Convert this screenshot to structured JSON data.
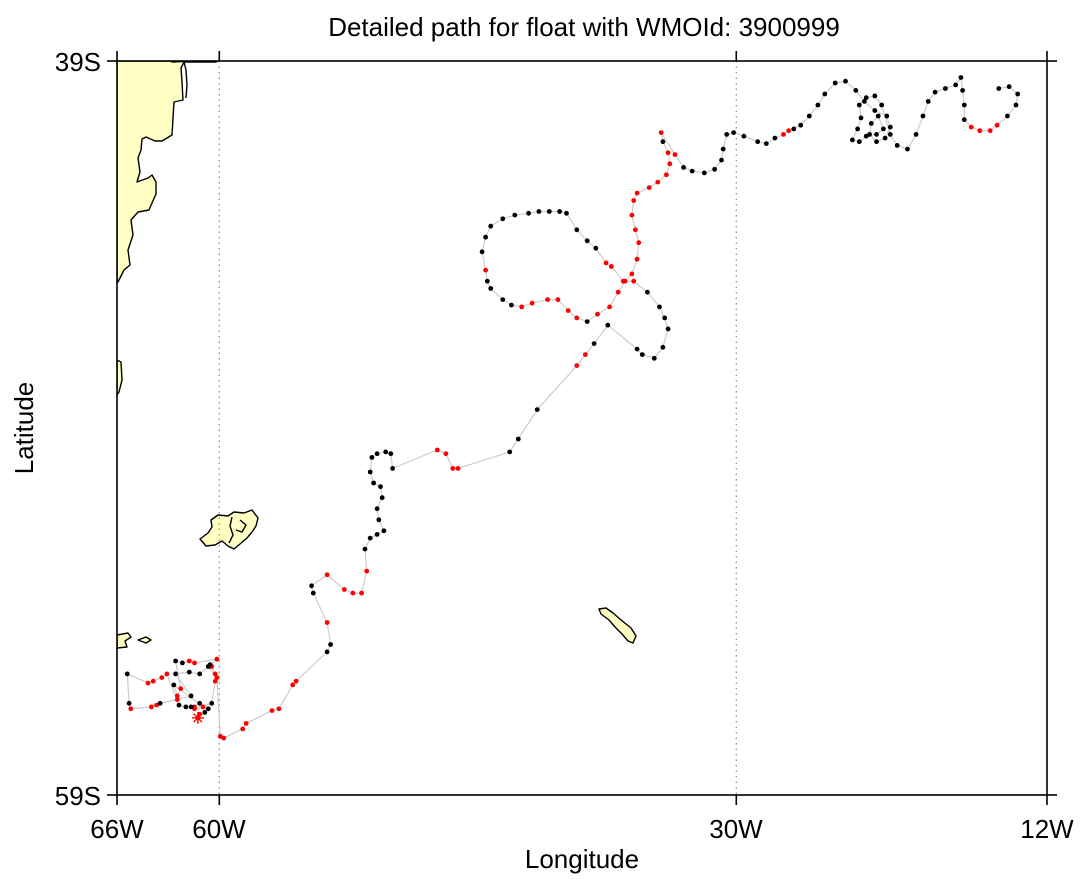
{
  "title": "Detailed path for float with WMOId: 3900999",
  "x_axis": {
    "label": "Longitude",
    "ticks": [
      "66W",
      "60W",
      "30W",
      "12W"
    ],
    "tick_values": [
      -66,
      -60,
      -30,
      -12
    ],
    "range": [
      -66,
      -12
    ]
  },
  "y_axis": {
    "label": "Latitude",
    "ticks": [
      "39S",
      "59S"
    ],
    "tick_values": [
      -39,
      -59
    ],
    "range": [
      -59,
      -39
    ]
  },
  "colors": {
    "land": "#ffffc4",
    "coast": "#000000",
    "track_line": "#cccccc",
    "point_black": "#000000",
    "point_red": "#ff0000",
    "gridline": "#888888"
  },
  "start_marker": {
    "lon": -61.3,
    "lat": -56.9,
    "symbol": "asterisk",
    "color": "#ff0000"
  },
  "track": [
    [
      -61.3,
      -56.9,
      "r"
    ],
    [
      -61.2,
      -56.8,
      "r"
    ],
    [
      -60.9,
      -56.75,
      "k"
    ],
    [
      -60.7,
      -56.65,
      "k"
    ],
    [
      -61.5,
      -56.65,
      "r"
    ],
    [
      -60.5,
      -56.5,
      "k"
    ],
    [
      -60.3,
      -55.9,
      "r"
    ],
    [
      -60.3,
      -55.7,
      "r"
    ],
    [
      -60.5,
      -55.5,
      "r"
    ],
    [
      -60.6,
      -55.45,
      "k"
    ],
    [
      -60.2,
      -55.3,
      "r"
    ],
    [
      -61.5,
      -55.4,
      "r"
    ],
    [
      -61.8,
      -55.35,
      "r"
    ],
    [
      -62.2,
      -55.4,
      "k"
    ],
    [
      -62.6,
      -55.35,
      "k"
    ],
    [
      -62.3,
      -56.1,
      "r"
    ],
    [
      -62.5,
      -56.3,
      "r"
    ],
    [
      -62.7,
      -56.0,
      "k"
    ],
    [
      -61.0,
      -56.6,
      "r"
    ],
    [
      -61.2,
      -56.5,
      "k"
    ],
    [
      -61.5,
      -56.6,
      "r"
    ],
    [
      -61.7,
      -56.6,
      "k"
    ],
    [
      -62.0,
      -56.6,
      "k"
    ],
    [
      -62.4,
      -56.55,
      "k"
    ],
    [
      -63.1,
      -55.7,
      "r"
    ],
    [
      -63.4,
      -55.8,
      "r"
    ],
    [
      -63.9,
      -55.9,
      "r"
    ],
    [
      -64.2,
      -55.95,
      "r"
    ],
    [
      -65.4,
      -55.7,
      "k"
    ],
    [
      -65.3,
      -56.5,
      "k"
    ],
    [
      -65.2,
      -56.65,
      "r"
    ],
    [
      -64.0,
      -56.6,
      "r"
    ],
    [
      -63.7,
      -56.55,
      "r"
    ],
    [
      -63.5,
      -56.5,
      "k"
    ],
    [
      -62.5,
      -56.4,
      "r"
    ],
    [
      -61.7,
      -56.3,
      "k"
    ],
    [
      -62.6,
      -55.7,
      "k"
    ],
    [
      -61.8,
      -55.65,
      "k"
    ],
    [
      -61.2,
      -55.7,
      "k"
    ],
    [
      -60.7,
      -55.5,
      "k"
    ],
    [
      -60.2,
      -55.8,
      "r"
    ],
    [
      -60.0,
      -57.4,
      "r"
    ],
    [
      -59.8,
      -57.45,
      "r"
    ],
    [
      -58.7,
      -57.2,
      "r"
    ],
    [
      -58.5,
      -57.05,
      "r"
    ],
    [
      -57.0,
      -56.7,
      "r"
    ],
    [
      -56.6,
      -56.65,
      "r"
    ],
    [
      -55.8,
      -56.0,
      "r"
    ],
    [
      -55.6,
      -55.9,
      "r"
    ],
    [
      -53.8,
      -55.1,
      "k"
    ],
    [
      -53.6,
      -54.9,
      "k"
    ],
    [
      -53.8,
      -54.3,
      "r"
    ],
    [
      -54.6,
      -53.5,
      "k"
    ],
    [
      -54.7,
      -53.3,
      "k"
    ],
    [
      -53.8,
      -53.0,
      "r"
    ],
    [
      -52.8,
      -53.4,
      "r"
    ],
    [
      -52.3,
      -53.5,
      "r"
    ],
    [
      -51.8,
      -53.5,
      "r"
    ],
    [
      -51.5,
      -52.9,
      "r"
    ],
    [
      -51.6,
      -52.3,
      "k"
    ],
    [
      -51.3,
      -52.0,
      "k"
    ],
    [
      -50.9,
      -51.9,
      "k"
    ],
    [
      -50.5,
      -51.8,
      "k"
    ],
    [
      -50.8,
      -51.5,
      "k"
    ],
    [
      -50.9,
      -51.2,
      "k"
    ],
    [
      -50.6,
      -50.9,
      "k"
    ],
    [
      -50.7,
      -50.6,
      "k"
    ],
    [
      -51.1,
      -50.5,
      "k"
    ],
    [
      -51.3,
      -50.2,
      "k"
    ],
    [
      -51.2,
      -49.8,
      "k"
    ],
    [
      -50.9,
      -49.7,
      "k"
    ],
    [
      -50.4,
      -49.65,
      "k"
    ],
    [
      -50.1,
      -49.7,
      "k"
    ],
    [
      -50.0,
      -50.1,
      "k"
    ],
    [
      -47.4,
      -49.6,
      "r"
    ],
    [
      -46.9,
      -49.7,
      "r"
    ],
    [
      -46.5,
      -50.1,
      "r"
    ],
    [
      -46.2,
      -50.1,
      "r"
    ],
    [
      -43.2,
      -49.65,
      "k"
    ],
    [
      -42.7,
      -49.3,
      "k"
    ],
    [
      -41.6,
      -48.5,
      "k"
    ],
    [
      -39.3,
      -47.3,
      "r"
    ],
    [
      -38.8,
      -47.0,
      "r"
    ],
    [
      -38.3,
      -46.7,
      "k"
    ],
    [
      -37.5,
      -46.2,
      "k"
    ],
    [
      -35.8,
      -46.85,
      "k"
    ],
    [
      -35.5,
      -47.0,
      "k"
    ],
    [
      -34.8,
      -47.1,
      "k"
    ],
    [
      -34.3,
      -46.8,
      "k"
    ],
    [
      -34.0,
      -46.3,
      "k"
    ],
    [
      -34.2,
      -46.0,
      "k"
    ],
    [
      -34.5,
      -45.7,
      "k"
    ],
    [
      -35.2,
      -45.3,
      "k"
    ],
    [
      -36.0,
      -45.0,
      "r"
    ],
    [
      -36.6,
      -45.0,
      "r"
    ],
    [
      -37.3,
      -44.6,
      "r"
    ],
    [
      -37.6,
      -44.5,
      "r"
    ],
    [
      -38.2,
      -44.1,
      "k"
    ],
    [
      -38.7,
      -43.9,
      "k"
    ],
    [
      -39.3,
      -43.6,
      "k"
    ],
    [
      -39.9,
      -43.15,
      "k"
    ],
    [
      -40.3,
      -43.1,
      "k"
    ],
    [
      -40.9,
      -43.1,
      "k"
    ],
    [
      -41.5,
      -43.1,
      "k"
    ],
    [
      -42.1,
      -43.15,
      "k"
    ],
    [
      -42.9,
      -43.2,
      "k"
    ],
    [
      -43.6,
      -43.3,
      "k"
    ],
    [
      -44.3,
      -43.5,
      "k"
    ],
    [
      -44.6,
      -43.8,
      "k"
    ],
    [
      -44.8,
      -44.2,
      "k"
    ],
    [
      -44.6,
      -44.7,
      "r"
    ],
    [
      -44.5,
      -45.0,
      "k"
    ],
    [
      -44.3,
      -45.2,
      "k"
    ],
    [
      -43.6,
      -45.5,
      "k"
    ],
    [
      -43.1,
      -45.65,
      "k"
    ],
    [
      -42.5,
      -45.7,
      "r"
    ],
    [
      -41.9,
      -45.6,
      "r"
    ],
    [
      -41.0,
      -45.5,
      "r"
    ],
    [
      -40.4,
      -45.5,
      "r"
    ],
    [
      -39.8,
      -45.8,
      "r"
    ],
    [
      -39.3,
      -46.0,
      "r"
    ],
    [
      -38.7,
      -46.1,
      "k"
    ],
    [
      -38.1,
      -45.9,
      "r"
    ],
    [
      -37.4,
      -45.7,
      "r"
    ],
    [
      -36.9,
      -45.3,
      "r"
    ],
    [
      -36.5,
      -45.0,
      "r"
    ],
    [
      -36.1,
      -44.8,
      "r"
    ],
    [
      -35.8,
      -44.4,
      "r"
    ],
    [
      -35.7,
      -43.95,
      "r"
    ],
    [
      -35.9,
      -43.6,
      "r"
    ],
    [
      -36.1,
      -43.2,
      "r"
    ],
    [
      -36.0,
      -42.8,
      "r"
    ],
    [
      -35.8,
      -42.6,
      "r"
    ],
    [
      -35.1,
      -42.45,
      "r"
    ],
    [
      -34.6,
      -42.3,
      "r"
    ],
    [
      -34.1,
      -42.1,
      "r"
    ],
    [
      -33.9,
      -41.8,
      "r"
    ],
    [
      -34.0,
      -41.5,
      "r"
    ],
    [
      -34.3,
      -41.2,
      "k"
    ],
    [
      -34.4,
      -40.95,
      "r"
    ],
    [
      -33.6,
      -41.55,
      "r"
    ],
    [
      -33.1,
      -41.9,
      "k"
    ],
    [
      -32.6,
      -42.0,
      "k"
    ],
    [
      -31.9,
      -42.05,
      "k"
    ],
    [
      -31.3,
      -41.95,
      "k"
    ],
    [
      -30.9,
      -41.7,
      "k"
    ],
    [
      -30.8,
      -41.4,
      "k"
    ],
    [
      -30.6,
      -41.0,
      "k"
    ],
    [
      -30.2,
      -40.95,
      "k"
    ],
    [
      -29.6,
      -41.05,
      "k"
    ],
    [
      -28.8,
      -41.2,
      "k"
    ],
    [
      -28.3,
      -41.25,
      "k"
    ],
    [
      -27.8,
      -41.1,
      "k"
    ],
    [
      -27.3,
      -41.0,
      "r"
    ],
    [
      -27.0,
      -40.9,
      "r"
    ],
    [
      -26.7,
      -40.85,
      "k"
    ],
    [
      -26.3,
      -40.75,
      "k"
    ],
    [
      -25.8,
      -40.5,
      "k"
    ],
    [
      -25.3,
      -40.2,
      "k"
    ],
    [
      -24.9,
      -39.9,
      "k"
    ],
    [
      -24.3,
      -39.6,
      "k"
    ],
    [
      -23.7,
      -39.55,
      "k"
    ],
    [
      -23.1,
      -39.8,
      "k"
    ],
    [
      -22.6,
      -40.1,
      "k"
    ],
    [
      -22.0,
      -40.35,
      "k"
    ],
    [
      -21.3,
      -40.5,
      "k"
    ],
    [
      -21.1,
      -40.8,
      "k"
    ],
    [
      -21.4,
      -41.1,
      "k"
    ],
    [
      -21.9,
      -41.2,
      "k"
    ],
    [
      -22.3,
      -41.0,
      "k"
    ],
    [
      -22.2,
      -40.7,
      "k"
    ],
    [
      -21.8,
      -40.5,
      "k"
    ],
    [
      -21.5,
      -40.85,
      "k"
    ],
    [
      -21.9,
      -41.0,
      "k"
    ],
    [
      -22.5,
      -41.05,
      "k"
    ],
    [
      -22.9,
      -41.2,
      "k"
    ],
    [
      -23.3,
      -41.15,
      "k"
    ],
    [
      -23.0,
      -40.85,
      "k"
    ],
    [
      -22.8,
      -40.55,
      "k"
    ],
    [
      -22.9,
      -40.2,
      "k"
    ],
    [
      -22.5,
      -40.0,
      "k"
    ],
    [
      -22.0,
      -39.95,
      "k"
    ],
    [
      -21.6,
      -40.2,
      "k"
    ],
    [
      -21.1,
      -41.0,
      "k"
    ],
    [
      -20.7,
      -41.3,
      "k"
    ],
    [
      -20.1,
      -41.4,
      "k"
    ],
    [
      -19.6,
      -41.0,
      "k"
    ],
    [
      -19.2,
      -40.5,
      "k"
    ],
    [
      -18.9,
      -40.1,
      "k"
    ],
    [
      -18.5,
      -39.85,
      "k"
    ],
    [
      -17.9,
      -39.75,
      "k"
    ],
    [
      -17.3,
      -39.65,
      "k"
    ],
    [
      -17.0,
      -39.45,
      "k"
    ],
    [
      -16.9,
      -39.8,
      "k"
    ],
    [
      -16.8,
      -40.2,
      "k"
    ],
    [
      -16.8,
      -40.6,
      "k"
    ],
    [
      -16.4,
      -40.8,
      "r"
    ],
    [
      -15.9,
      -40.9,
      "r"
    ],
    [
      -15.3,
      -40.9,
      "r"
    ],
    [
      -14.9,
      -40.75,
      "r"
    ],
    [
      -14.3,
      -40.5,
      "k"
    ],
    [
      -13.8,
      -40.2,
      "k"
    ],
    [
      -13.7,
      -39.9,
      "k"
    ],
    [
      -14.2,
      -39.7,
      "k"
    ],
    [
      -14.8,
      -39.75,
      "k"
    ]
  ]
}
